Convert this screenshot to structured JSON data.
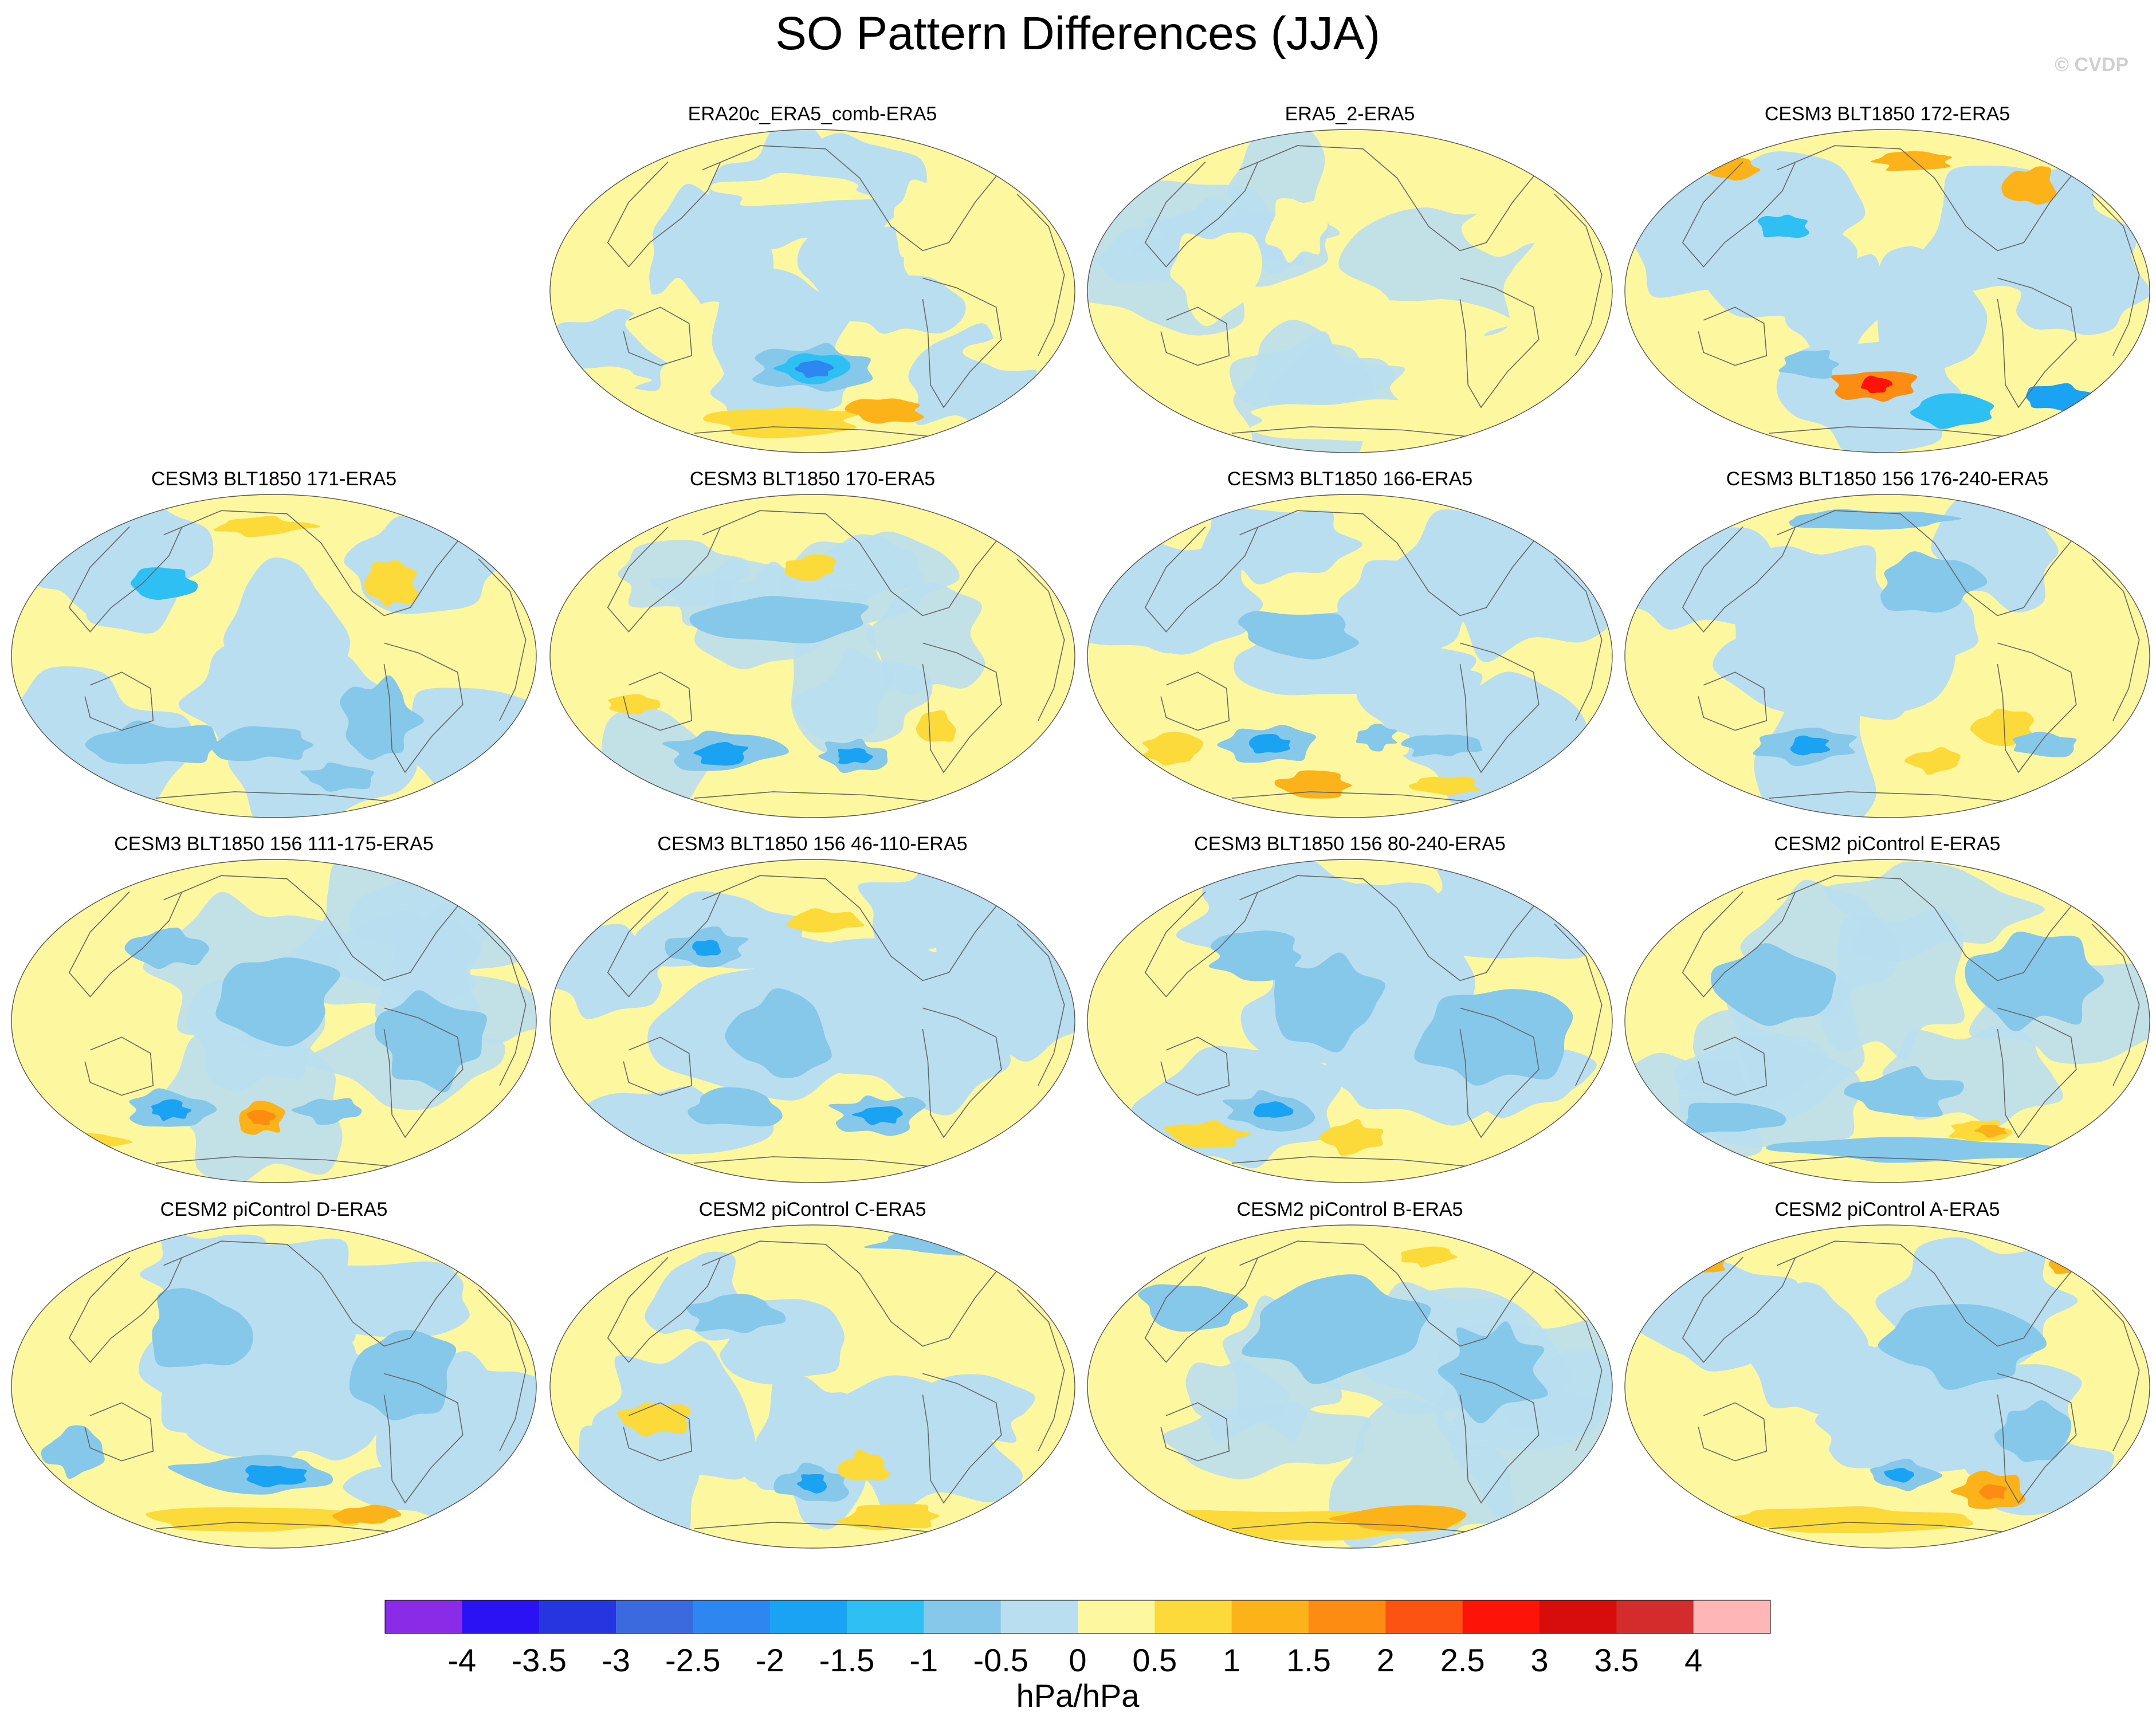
{
  "chart_data": {
    "type": "heatmap",
    "title": "SO Pattern Differences (JJA)",
    "watermark": "© CVDP",
    "projection": "Robinson-like global map, Pacific-centered",
    "panels": [
      {
        "title": "ERA20c_ERA5_comb-ERA5",
        "row": 0,
        "col": 1
      },
      {
        "title": "ERA5_2-ERA5",
        "row": 0,
        "col": 2
      },
      {
        "title": "CESM3 BLT1850 172-ERA5",
        "row": 0,
        "col": 3
      },
      {
        "title": "CESM3 BLT1850 171-ERA5",
        "row": 1,
        "col": 0
      },
      {
        "title": "CESM3 BLT1850 170-ERA5",
        "row": 1,
        "col": 1
      },
      {
        "title": "CESM3 BLT1850 166-ERA5",
        "row": 1,
        "col": 2
      },
      {
        "title": "CESM3 BLT1850 156 176-240-ERA5",
        "row": 1,
        "col": 3
      },
      {
        "title": "CESM3 BLT1850 156 111-175-ERA5",
        "row": 2,
        "col": 0
      },
      {
        "title": "CESM3 BLT1850 156 46-110-ERA5",
        "row": 2,
        "col": 1
      },
      {
        "title": "CESM3 BLT1850 156 80-240-ERA5",
        "row": 2,
        "col": 2
      },
      {
        "title": "CESM2 piControl E-ERA5",
        "row": 2,
        "col": 3
      },
      {
        "title": "CESM2 piControl D-ERA5",
        "row": 3,
        "col": 0
      },
      {
        "title": "CESM2 piControl C-ERA5",
        "row": 3,
        "col": 1
      },
      {
        "title": "CESM2 piControl B-ERA5",
        "row": 3,
        "col": 2
      },
      {
        "title": "CESM2 piControl A-ERA5",
        "row": 3,
        "col": 3
      }
    ],
    "colorbar": {
      "label": "hPa/hPa",
      "ticks": [
        "-4",
        "-3.5",
        "-3",
        "-2.5",
        "-2",
        "-1.5",
        "-1",
        "-0.5",
        "0",
        "0.5",
        "1",
        "1.5",
        "2",
        "2.5",
        "3",
        "3.5",
        "4"
      ],
      "colors": [
        "#8a2be8",
        "#2a12f5",
        "#2535e0",
        "#3b6ade",
        "#2e86f0",
        "#1aa3f2",
        "#2ec0f2",
        "#85c8ea",
        "#b8def0",
        "#fdf7a0",
        "#fcda3a",
        "#fcb31a",
        "#fd8c12",
        "#fd5312",
        "#fd1308",
        "#d80c0c",
        "#d42c2c",
        "#feb6b6"
      ],
      "range": [
        -4.25,
        4.25
      ]
    }
  }
}
